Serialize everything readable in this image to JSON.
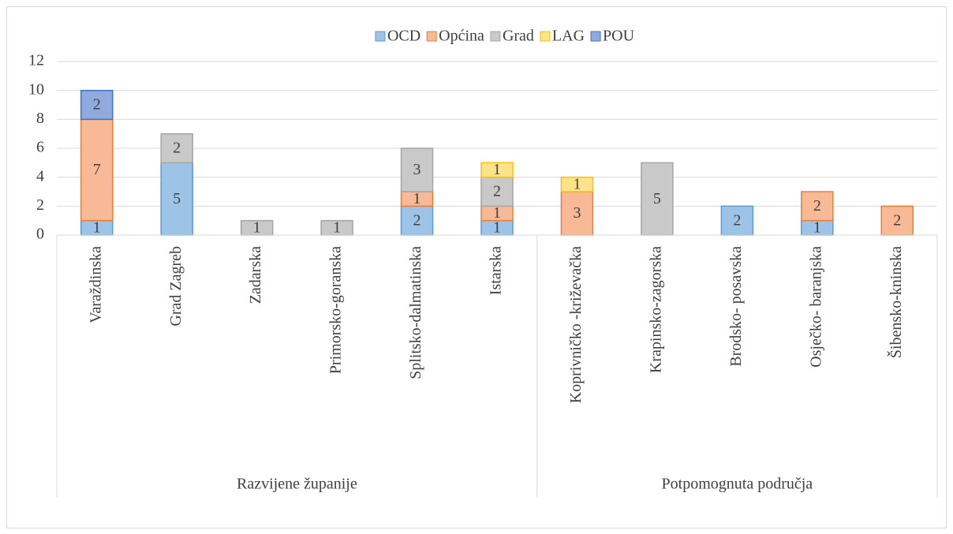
{
  "chart_data": {
    "type": "stacked_bar",
    "groups": [
      {
        "name": "Razvijene županije",
        "categories": [
          "Varaždinska",
          "Grad Zagreb",
          "Zadarska",
          "Primorsko-goranska",
          "Splitsko-dalmatinska",
          "Istarska"
        ]
      },
      {
        "name": "Potpomognuta područja",
        "categories": [
          "Koprivničko -križevačka",
          "Krapinsko-zagorska",
          "Brodsko- posavska",
          "Osječko- baranjska",
          "Šibensko-kninska"
        ]
      }
    ],
    "series": [
      {
        "name": "OCD",
        "color": "#9dc3e6",
        "edge": "#5b9bd5",
        "values": [
          1,
          5,
          null,
          null,
          2,
          1,
          null,
          null,
          2,
          1,
          null
        ]
      },
      {
        "name": "Općina",
        "color": "#f8b996",
        "edge": "#ed7d31",
        "values": [
          7,
          null,
          null,
          null,
          1,
          1,
          3,
          null,
          null,
          2,
          2
        ]
      },
      {
        "name": "Grad",
        "color": "#c9c9c9",
        "edge": "#a5a5a5",
        "values": [
          null,
          2,
          1,
          1,
          3,
          2,
          null,
          5,
          null,
          null,
          null
        ]
      },
      {
        "name": "LAG",
        "color": "#ffe38a",
        "edge": "#ffc000",
        "values": [
          null,
          null,
          null,
          null,
          null,
          1,
          1,
          null,
          null,
          null,
          null
        ]
      },
      {
        "name": "POU",
        "color": "#8faadc",
        "edge": "#4472c4",
        "values": [
          2,
          null,
          null,
          null,
          null,
          null,
          null,
          null,
          null,
          null,
          null
        ]
      }
    ],
    "ylim": [
      0,
      12
    ],
    "yticks": [
      0,
      2,
      4,
      6,
      8,
      10,
      12
    ],
    "grid": true,
    "legend": "top"
  }
}
